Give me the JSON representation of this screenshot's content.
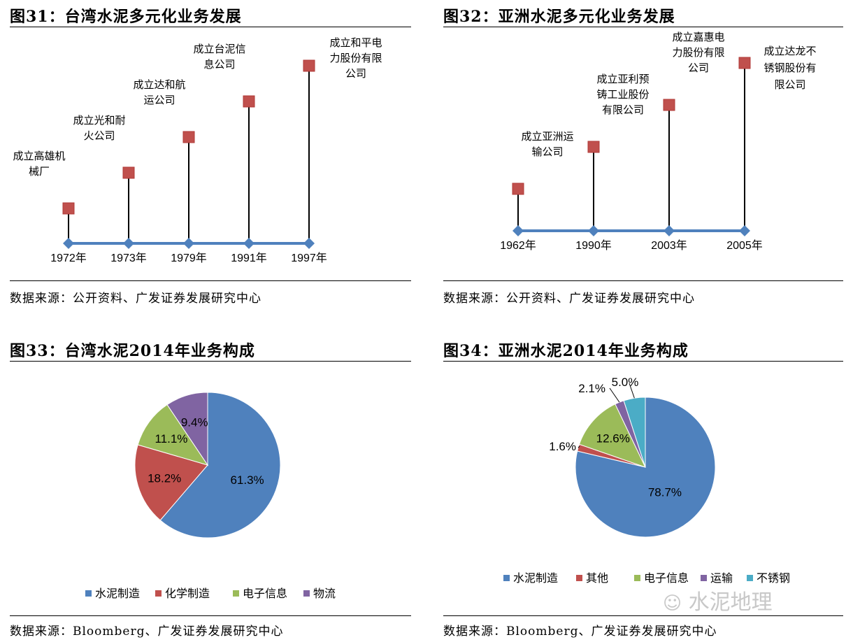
{
  "charts": [
    {
      "title": "图31：台湾水泥多元化业务发展",
      "source": "数据来源：公开资料、广发证券发展研究中心",
      "chart_data": {
        "type": "timeline",
        "events": [
          {
            "year": "1972年",
            "label": [
              "成立高雄机",
              "械厂"
            ],
            "level": 1
          },
          {
            "year": "1973年",
            "label": [
              "成立光和耐",
              "火公司"
            ],
            "level": 2
          },
          {
            "year": "1979年",
            "label": [
              "成立达和航",
              "运公司"
            ],
            "level": 3
          },
          {
            "year": "1991年",
            "label": [
              "成立台泥信",
              "息公司"
            ],
            "level": 4
          },
          {
            "year": "1997年",
            "label": [
              "成立和平电",
              "力股份有限",
              "公司"
            ],
            "level": 5
          }
        ]
      }
    },
    {
      "title": "图32：亚洲水泥多元化业务发展",
      "source": "数据来源：公开资料、广发证券发展研究中心",
      "chart_data": {
        "type": "timeline",
        "events": [
          {
            "year": "1962年",
            "label": [
              "成立亚洲运",
              "输公司"
            ],
            "level": 1
          },
          {
            "year": "1990年",
            "label": [
              "成立亚利预",
              "铸工业股份",
              "有限公司"
            ],
            "level": 2
          },
          {
            "year": "2003年",
            "label": [
              "成立嘉惠电",
              "力股份有限",
              "公司"
            ],
            "level": 3
          },
          {
            "year": "2005年",
            "label": [
              "成立达龙不",
              "锈钢股份有",
              "限公司"
            ],
            "level": 4
          }
        ]
      }
    },
    {
      "title": "图33：台湾水泥2014年业务构成",
      "source": "数据来源：Bloomberg、广发证券发展研究中心",
      "chart_data": {
        "type": "pie",
        "series": [
          {
            "name": "水泥制造",
            "value": 61.3,
            "label": "61.3%",
            "color": "#4f81bd"
          },
          {
            "name": "化学制造",
            "value": 18.2,
            "label": "18.2%",
            "color": "#c0504d"
          },
          {
            "name": "电子信息",
            "value": 11.1,
            "label": "11.1%",
            "color": "#9bbb59"
          },
          {
            "name": "物流",
            "value": 9.4,
            "label": "9.4%",
            "color": "#8064a2"
          }
        ]
      }
    },
    {
      "title": "图34：亚洲水泥2014年业务构成",
      "source": "数据来源：Bloomberg、广发证券发展研究中心",
      "chart_data": {
        "type": "pie",
        "series": [
          {
            "name": "水泥制造",
            "value": 78.7,
            "label": "78.7%",
            "color": "#4f81bd"
          },
          {
            "name": "其他",
            "value": 1.6,
            "label": "1.6%",
            "color": "#c0504d"
          },
          {
            "name": "电子信息",
            "value": 12.6,
            "label": "12.6%",
            "color": "#9bbb59"
          },
          {
            "name": "运输",
            "value": 2.1,
            "label": "2.1%",
            "color": "#8064a2"
          },
          {
            "name": "不锈钢",
            "value": 5.0,
            "label": "5.0%",
            "color": "#4bacc6"
          }
        ]
      }
    }
  ],
  "watermark": "水泥地理",
  "colors": {
    "axis": "#4f81bd",
    "marker": "#c0504d",
    "stem": "#000000"
  }
}
